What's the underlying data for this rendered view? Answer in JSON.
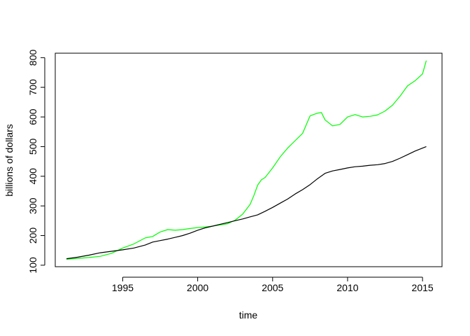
{
  "chart_data": {
    "type": "line",
    "title": "",
    "xlabel": "time",
    "ylabel": "billions of dollars",
    "xlim": [
      1990.5,
      2016.3
    ],
    "ylim": [
      95,
      815
    ],
    "x_ticks": [
      1995,
      2000,
      2005,
      2010,
      2015
    ],
    "y_ticks": [
      100,
      200,
      300,
      400,
      500,
      600,
      700,
      800
    ],
    "grid": false,
    "legend": "none",
    "series": [
      {
        "color": "#00ff00",
        "points": [
          [
            1991.25,
            120
          ],
          [
            1992.0,
            123
          ],
          [
            1992.75,
            126
          ],
          [
            1993.5,
            130
          ],
          [
            1994.25,
            140
          ],
          [
            1995.0,
            158
          ],
          [
            1995.75,
            172
          ],
          [
            1996.5,
            192
          ],
          [
            1997.0,
            197
          ],
          [
            1997.5,
            212
          ],
          [
            1998.0,
            220
          ],
          [
            1998.5,
            218
          ],
          [
            1999.0,
            220
          ],
          [
            1999.5,
            224
          ],
          [
            2000.0,
            227
          ],
          [
            2000.5,
            229
          ],
          [
            2001.0,
            232
          ],
          [
            2001.5,
            236
          ],
          [
            2002.0,
            240
          ],
          [
            2002.5,
            252
          ],
          [
            2003.0,
            272
          ],
          [
            2003.5,
            305
          ],
          [
            2003.75,
            335
          ],
          [
            2004.0,
            370
          ],
          [
            2004.25,
            388
          ],
          [
            2004.5,
            396
          ],
          [
            2005.0,
            428
          ],
          [
            2005.5,
            465
          ],
          [
            2006.0,
            495
          ],
          [
            2006.5,
            520
          ],
          [
            2007.0,
            545
          ],
          [
            2007.5,
            604
          ],
          [
            2008.0,
            613
          ],
          [
            2008.25,
            615
          ],
          [
            2008.5,
            590
          ],
          [
            2009.0,
            570
          ],
          [
            2009.5,
            575
          ],
          [
            2010.0,
            600
          ],
          [
            2010.5,
            608
          ],
          [
            2011.0,
            600
          ],
          [
            2011.5,
            602
          ],
          [
            2012.0,
            607
          ],
          [
            2012.5,
            620
          ],
          [
            2013.0,
            640
          ],
          [
            2013.5,
            670
          ],
          [
            2014.0,
            705
          ],
          [
            2014.5,
            722
          ],
          [
            2015.0,
            745
          ],
          [
            2015.25,
            790
          ]
        ]
      },
      {
        "color": "#000000",
        "points": [
          [
            1991.25,
            122
          ],
          [
            1992.0,
            127
          ],
          [
            1992.75,
            134
          ],
          [
            1993.5,
            142
          ],
          [
            1994.25,
            147
          ],
          [
            1995.0,
            152
          ],
          [
            1995.75,
            158
          ],
          [
            1996.5,
            168
          ],
          [
            1997.0,
            178
          ],
          [
            1997.5,
            183
          ],
          [
            1998.0,
            188
          ],
          [
            1998.5,
            194
          ],
          [
            1999.0,
            200
          ],
          [
            1999.5,
            208
          ],
          [
            2000.0,
            218
          ],
          [
            2000.5,
            226
          ],
          [
            2001.0,
            232
          ],
          [
            2001.5,
            238
          ],
          [
            2002.0,
            244
          ],
          [
            2002.5,
            250
          ],
          [
            2003.0,
            256
          ],
          [
            2003.5,
            263
          ],
          [
            2004.0,
            270
          ],
          [
            2004.5,
            282
          ],
          [
            2005.0,
            295
          ],
          [
            2005.5,
            309
          ],
          [
            2006.0,
            323
          ],
          [
            2006.5,
            340
          ],
          [
            2007.0,
            355
          ],
          [
            2007.5,
            372
          ],
          [
            2008.0,
            392
          ],
          [
            2008.5,
            410
          ],
          [
            2009.0,
            418
          ],
          [
            2009.5,
            423
          ],
          [
            2010.0,
            428
          ],
          [
            2010.5,
            432
          ],
          [
            2011.0,
            434
          ],
          [
            2011.5,
            437
          ],
          [
            2012.0,
            439
          ],
          [
            2012.5,
            443
          ],
          [
            2013.0,
            450
          ],
          [
            2013.5,
            461
          ],
          [
            2014.0,
            473
          ],
          [
            2014.5,
            485
          ],
          [
            2015.0,
            495
          ],
          [
            2015.25,
            500
          ]
        ]
      }
    ]
  }
}
